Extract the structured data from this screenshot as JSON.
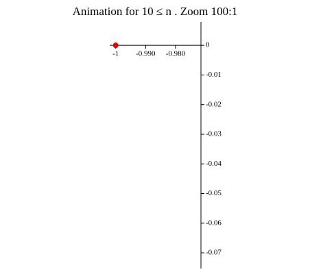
{
  "chart_data": {
    "type": "scatter",
    "title": "Animation  for  10 ≤ n .   Zoom 100:1",
    "series": [
      {
        "color": "#e60000",
        "x": [
          -1
        ],
        "values": [
          0
        ]
      }
    ],
    "xlim": [
      -1.002,
      -0.9715
    ],
    "xticks": [
      -1,
      {
        "value": -0.99,
        "label": "-0.990"
      },
      {
        "value": -0.98,
        "label": "-0.980"
      }
    ],
    "ylim": [
      -0.0753,
      0.0079
    ],
    "yticks": [
      0,
      -0.01,
      -0.02,
      -0.03,
      -0.04,
      -0.05,
      -0.06,
      -0.07
    ]
  }
}
